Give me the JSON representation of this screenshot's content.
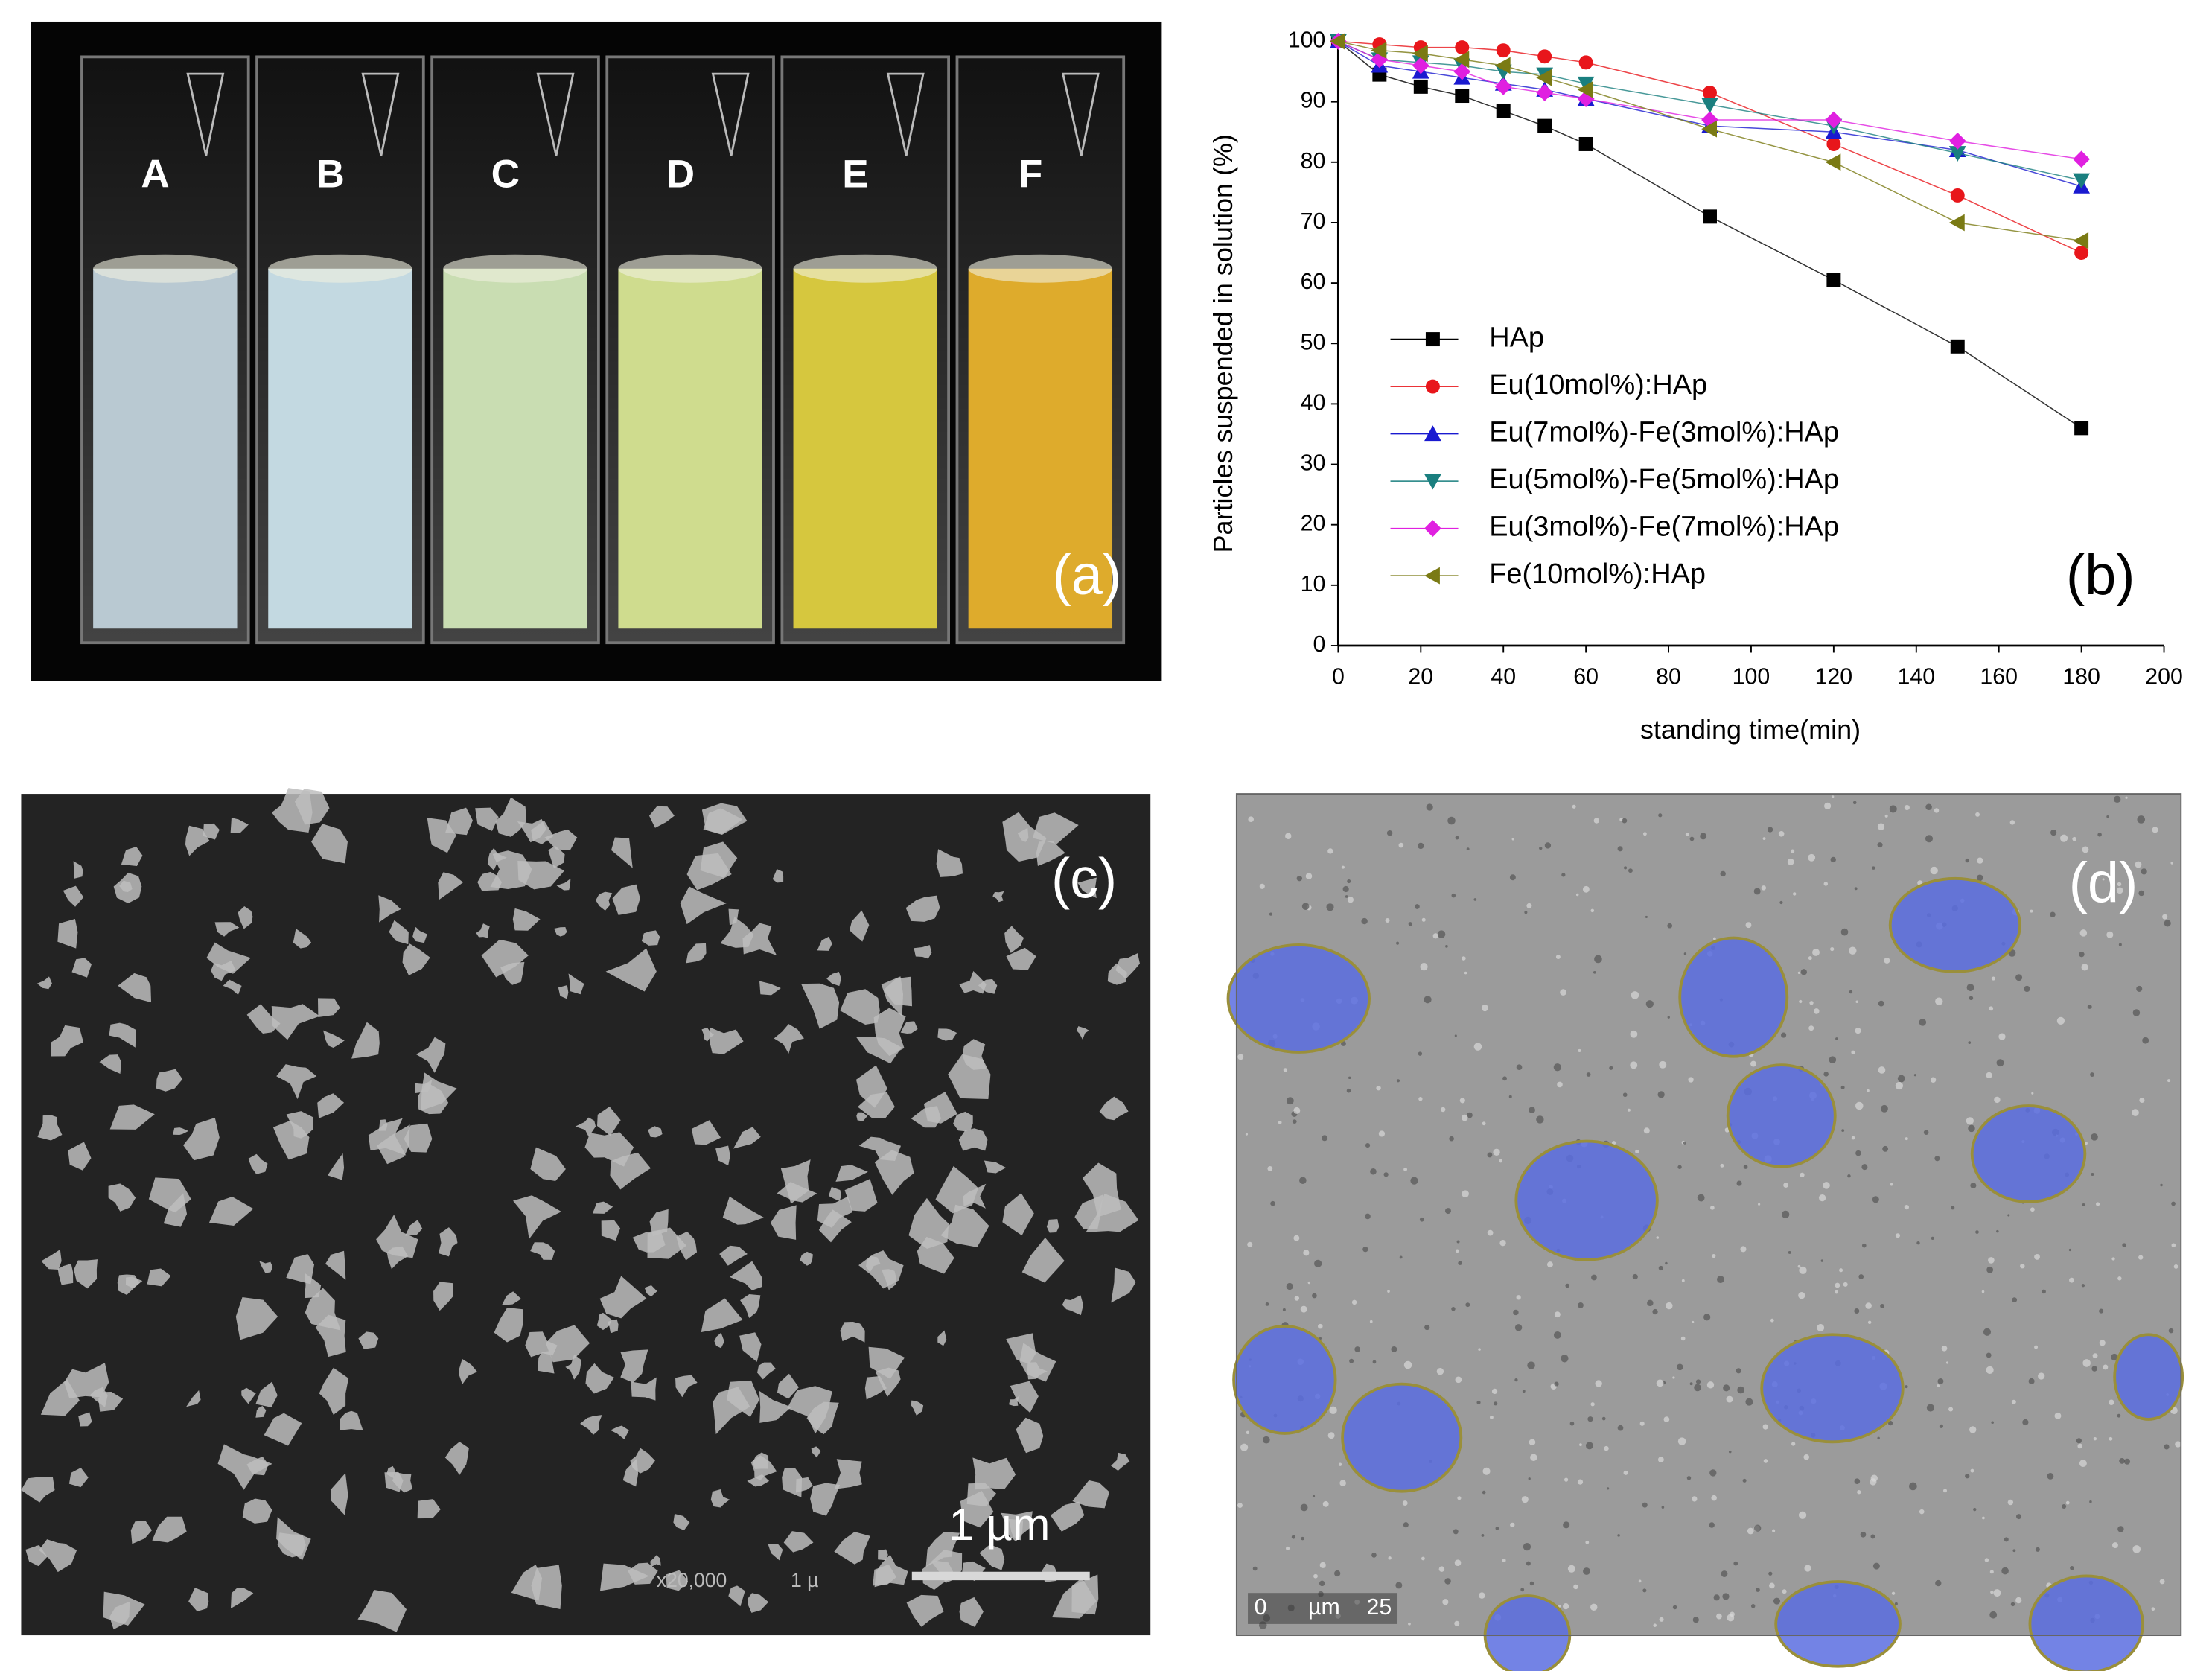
{
  "panels": {
    "a": {
      "labels": [
        "A",
        "B",
        "C",
        "D",
        "E",
        "F"
      ],
      "tag": "(a)"
    },
    "c": {
      "tag": "(c)",
      "scale_bar": "1 µm",
      "magnification": "x20,000",
      "scale_text": "1 µ"
    },
    "d": {
      "tag": "(d)",
      "scale": [
        "0",
        "µm",
        "25"
      ]
    }
  },
  "chart_data": {
    "type": "line",
    "tag": "(b)",
    "x_label": "standing time(min)",
    "y_label": "Particles suspended in solution (%)",
    "x": [
      0,
      10,
      20,
      30,
      40,
      50,
      60,
      90,
      120,
      150,
      180
    ],
    "series": [
      {
        "name": "HAp",
        "color": "#000000",
        "marker": "square",
        "values": [
          100,
          94.5,
          92.5,
          91,
          88.5,
          86,
          83,
          71,
          60.5,
          49.5,
          36
        ]
      },
      {
        "name": "Eu(10mol%):HAp",
        "color": "#e8161b",
        "marker": "circle",
        "values": [
          100,
          99.5,
          99,
          99,
          98.5,
          97.5,
          96.5,
          91.5,
          83,
          74.5,
          65
        ]
      },
      {
        "name": "Eu(7mol%)-Fe(3mol%):HAp",
        "color": "#1a1ad0",
        "marker": "triangle-up",
        "values": [
          100,
          96,
          95,
          94,
          93,
          92,
          90.5,
          86,
          85,
          82,
          76
        ]
      },
      {
        "name": "Eu(5mol%)-Fe(5mol%):HAp",
        "color": "#1a7f7f",
        "marker": "triangle-down",
        "values": [
          100,
          97,
          96.5,
          96,
          95,
          94.5,
          93,
          89.5,
          86,
          81.5,
          77
        ]
      },
      {
        "name": "Eu(3mol%)-Fe(7mol%):HAp",
        "color": "#e020e0",
        "marker": "diamond",
        "values": [
          100,
          97,
          96,
          95,
          92.5,
          91.5,
          90.5,
          87,
          87,
          83.5,
          80.5
        ]
      },
      {
        "name": "Fe(10mol%):HAp",
        "color": "#7a7a14",
        "marker": "triangle-left",
        "values": [
          100,
          98.5,
          98,
          97,
          96,
          94,
          92,
          85.5,
          80,
          70,
          67
        ]
      }
    ],
    "xlim": [
      0,
      200
    ],
    "xticks": [
      0,
      20,
      40,
      60,
      80,
      100,
      120,
      140,
      160,
      180,
      200
    ],
    "ylim": [
      0,
      100
    ],
    "yticks": [
      0,
      10,
      20,
      30,
      40,
      50,
      60,
      70,
      80,
      90,
      100
    ],
    "grid": false,
    "legend": "lower left"
  }
}
